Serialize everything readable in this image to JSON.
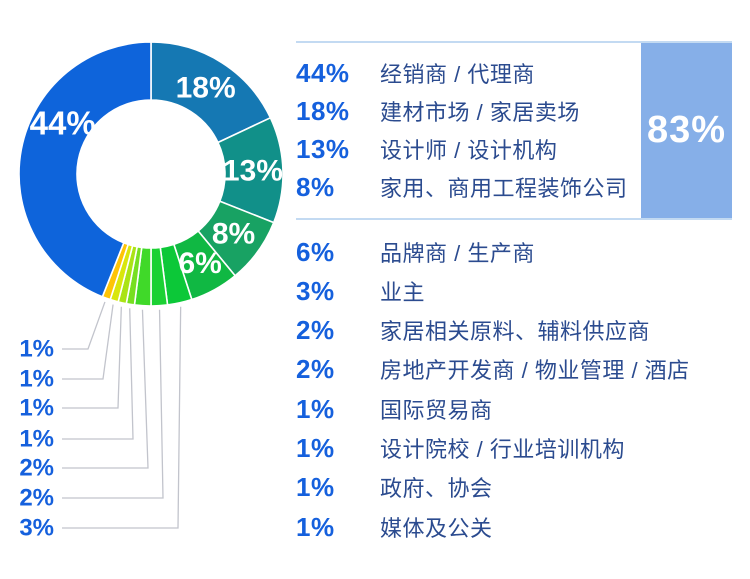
{
  "colors": {
    "background": "#ffffff",
    "accent_blue": "#1560dd",
    "label_navy": "#2b4b8f",
    "divider_blue": "#c3daf2",
    "highlight_box_blue": "#86afe8",
    "highlight_text": "#ffffff",
    "leader_line_gray": "#c2c4cc",
    "slice_border_white": "#ffffff"
  },
  "chart_data": {
    "type": "pie",
    "title": "",
    "donut": true,
    "start_angle_deg": 0,
    "direction": "clockwise",
    "inner_radius_ratio": 0.56,
    "legend_position": "right",
    "slices": [
      {
        "label": "建材市场 / 家居卖场",
        "value": 18,
        "color": "#1578b3",
        "label_inside": "18%"
      },
      {
        "label": "设计师 / 设计机构",
        "value": 13,
        "color": "#119089",
        "label_inside": "13%"
      },
      {
        "label": "家用、商用工程装饰公司",
        "value": 8,
        "color": "#18a263",
        "label_inside": "8%"
      },
      {
        "label": "品牌商 / 生产商",
        "value": 6,
        "color": "#10b843",
        "label_inside": "6%"
      },
      {
        "label": "业主",
        "value": 3,
        "color": "#0cc838",
        "callout": "3%"
      },
      {
        "label": "家居相关原料、辅料供应商",
        "value": 2,
        "color": "#1bd133",
        "callout": "2%"
      },
      {
        "label": "房地产开发商 / 物业管理 / 酒店",
        "value": 2,
        "color": "#40d929",
        "callout": "2%"
      },
      {
        "label": "国际贸易商",
        "value": 1,
        "color": "#76df20",
        "callout": "1%"
      },
      {
        "label": "设计院校 / 行业培训机构",
        "value": 1,
        "color": "#aae315",
        "callout": "1%"
      },
      {
        "label": "政府、协会",
        "value": 1,
        "color": "#d9e60c",
        "callout": "1%"
      },
      {
        "label": "媒体及公关",
        "value": 1,
        "color": "#fec406",
        "callout": "1%"
      },
      {
        "label": "经销商 / 代理商",
        "value": 44,
        "color": "#0e64db",
        "label_inside": "44%",
        "label_angle_deg": 300
      }
    ]
  },
  "legend": {
    "top_group": {
      "highlight": "83%",
      "rows": [
        {
          "pct": "44%",
          "label": "经销商 / 代理商"
        },
        {
          "pct": "18%",
          "label": "建材市场 / 家居卖场"
        },
        {
          "pct": "13%",
          "label": "设计师 / 设计机构"
        },
        {
          "pct": "8%",
          "label": "家用、商用工程装饰公司"
        }
      ]
    },
    "bottom_group": {
      "rows": [
        {
          "pct": "6%",
          "label": "品牌商 / 生产商"
        },
        {
          "pct": "3%",
          "label": "业主"
        },
        {
          "pct": "2%",
          "label": "家居相关原料、辅料供应商"
        },
        {
          "pct": "2%",
          "label": "房地产开发商 / 物业管理 / 酒店"
        },
        {
          "pct": "1%",
          "label": "国际贸易商"
        },
        {
          "pct": "1%",
          "label": "设计院校 / 行业培训机构"
        },
        {
          "pct": "1%",
          "label": "政府、协会"
        },
        {
          "pct": "1%",
          "label": "媒体及公关"
        }
      ]
    }
  }
}
